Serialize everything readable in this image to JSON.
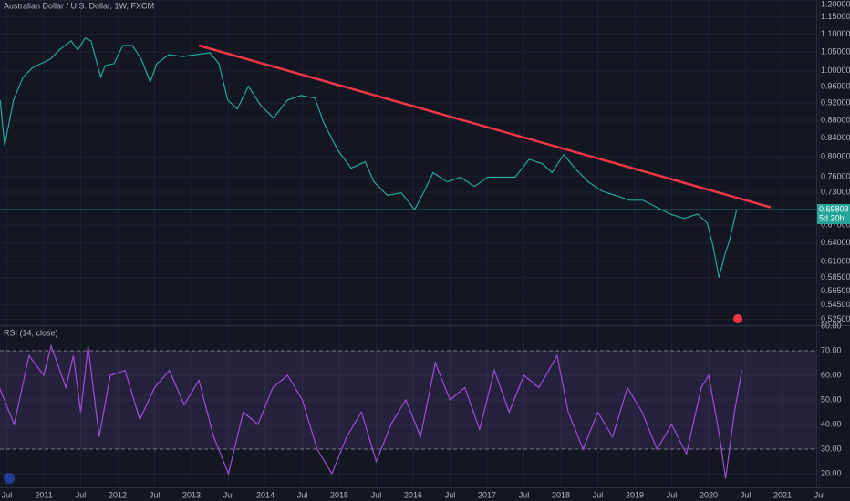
{
  "chart_data": [
    {
      "type": "line",
      "title": "Australian Dollar / U.S. Dollar, 1W, FXCM",
      "log_scale": true,
      "grid": true,
      "color": "#26a69a",
      "x": [
        2010.41,
        2010.47,
        2010.59,
        2010.72,
        2010.84,
        2010.96,
        2011.09,
        2011.21,
        2011.37,
        2011.46,
        2011.56,
        2011.64,
        2011.77,
        2011.83,
        2011.95,
        2012.07,
        2012.2,
        2012.32,
        2012.44,
        2012.53,
        2012.69,
        2012.88,
        2013.06,
        2013.25,
        2013.37,
        2013.49,
        2013.62,
        2013.77,
        2013.93,
        2014.11,
        2014.3,
        2014.48,
        2014.67,
        2014.79,
        2014.98,
        2015.16,
        2015.35,
        2015.47,
        2015.65,
        2015.84,
        2016.02,
        2016.15,
        2016.27,
        2016.46,
        2016.64,
        2016.83,
        2017.01,
        2017.2,
        2017.38,
        2017.57,
        2017.75,
        2017.88,
        2018.04,
        2018.19,
        2018.37,
        2018.56,
        2018.74,
        2018.93,
        2019.11,
        2019.3,
        2019.48,
        2019.67,
        2019.85,
        2019.98,
        2020.06,
        2020.14,
        2020.22,
        2020.28,
        2020.38
      ],
      "values": [
        0.927,
        0.824,
        0.927,
        0.984,
        1.007,
        1.019,
        1.031,
        1.056,
        1.081,
        1.056,
        1.089,
        1.081,
        0.984,
        1.014,
        1.019,
        1.068,
        1.068,
        1.031,
        0.972,
        1.019,
        1.043,
        1.038,
        1.043,
        1.048,
        1.019,
        0.927,
        0.906,
        0.961,
        0.916,
        0.885,
        0.927,
        0.938,
        0.932,
        0.874,
        0.814,
        0.777,
        0.79,
        0.75,
        0.724,
        0.729,
        0.698,
        0.732,
        0.768,
        0.75,
        0.759,
        0.741,
        0.759,
        0.759,
        0.759,
        0.795,
        0.786,
        0.768,
        0.805,
        0.777,
        0.75,
        0.732,
        0.724,
        0.715,
        0.715,
        0.702,
        0.69,
        0.682,
        0.69,
        0.674,
        0.635,
        0.585,
        0.621,
        0.643,
        0.69803
      ],
      "trendline": {
        "x": [
          2013.1,
          2020.84
        ],
        "values": [
          1.068,
          0.702
        ],
        "color": "#f23645"
      },
      "last_price": 0.69803,
      "countdown": "5d 20h",
      "ylim": [
        0.517,
        1.202
      ],
      "yticks": [
        {
          "value": 1.2,
          "label": "1.20000"
        },
        {
          "value": 1.15,
          "label": "1.15000"
        },
        {
          "value": 1.1,
          "label": "1.10000"
        },
        {
          "value": 1.05,
          "label": "1.05000"
        },
        {
          "value": 1.0,
          "label": "1.00000"
        },
        {
          "value": 0.96,
          "label": "0.96000"
        },
        {
          "value": 0.92,
          "label": "0.92000"
        },
        {
          "value": 0.88,
          "label": "0.88000"
        },
        {
          "value": 0.84,
          "label": "0.84000"
        },
        {
          "value": 0.8,
          "label": "0.80000"
        },
        {
          "value": 0.76,
          "label": "0.76000"
        },
        {
          "value": 0.73,
          "label": "0.73000"
        },
        {
          "value": 0.67,
          "label": "0.67000"
        },
        {
          "value": 0.64,
          "label": "0.64000"
        },
        {
          "value": 0.61,
          "label": "0.61000"
        },
        {
          "value": 0.585,
          "label": "0.58500"
        },
        {
          "value": 0.565,
          "label": "0.56500"
        },
        {
          "value": 0.545,
          "label": "0.54500"
        },
        {
          "value": 0.525,
          "label": "0.52500"
        }
      ]
    },
    {
      "type": "line",
      "title": "RSI (14, close)",
      "grid": true,
      "color": "#9c4fd6",
      "bands": [
        70,
        30
      ],
      "x": [
        2010.4,
        2010.6,
        2010.8,
        2011.0,
        2011.1,
        2011.3,
        2011.4,
        2011.5,
        2011.6,
        2011.75,
        2011.9,
        2012.1,
        2012.3,
        2012.5,
        2012.7,
        2012.9,
        2013.1,
        2013.3,
        2013.5,
        2013.7,
        2013.9,
        2014.1,
        2014.3,
        2014.5,
        2014.7,
        2014.9,
        2015.1,
        2015.3,
        2015.5,
        2015.7,
        2015.9,
        2016.1,
        2016.3,
        2016.5,
        2016.7,
        2016.9,
        2017.1,
        2017.3,
        2017.5,
        2017.7,
        2017.95,
        2018.1,
        2018.3,
        2018.5,
        2018.7,
        2018.9,
        2019.1,
        2019.3,
        2019.5,
        2019.7,
        2019.9,
        2020.0,
        2020.15,
        2020.23,
        2020.35,
        2020.45
      ],
      "values": [
        55,
        40,
        68,
        60,
        72,
        55,
        68,
        45,
        72,
        35,
        60,
        62,
        42,
        55,
        62,
        48,
        58,
        35,
        20,
        45,
        40,
        55,
        60,
        50,
        30,
        20,
        35,
        45,
        25,
        40,
        50,
        35,
        65,
        50,
        55,
        38,
        62,
        45,
        60,
        55,
        68,
        45,
        30,
        45,
        35,
        55,
        45,
        30,
        40,
        28,
        55,
        60,
        35,
        18,
        45,
        62
      ],
      "ylim": [
        14.44,
        80
      ],
      "yticks": [
        {
          "value": 80,
          "label": "80.00"
        },
        {
          "value": 70,
          "label": "70.00"
        },
        {
          "value": 60,
          "label": "60.00"
        },
        {
          "value": 50,
          "label": "50.00"
        },
        {
          "value": 40,
          "label": "40.00"
        },
        {
          "value": 30,
          "label": "30.00"
        },
        {
          "value": 20,
          "label": "20.00"
        }
      ],
      "xlim": [
        2010.407,
        2021.457
      ],
      "xticks": [
        {
          "value": 2010.5,
          "label": "Jul"
        },
        2011,
        {
          "value": 2011.5,
          "label": "Jul"
        },
        2012,
        {
          "value": 2012.5,
          "label": "Jul"
        },
        2013,
        {
          "value": 2013.5,
          "label": "Jul"
        },
        2014,
        {
          "value": 2014.5,
          "label": "Jul"
        },
        2015,
        {
          "value": 2015.5,
          "label": "Jul"
        },
        2016,
        {
          "value": 2016.5,
          "label": "Jul"
        },
        2017,
        {
          "value": 2017.5,
          "label": "Jul"
        },
        2018,
        {
          "value": 2018.5,
          "label": "Jul"
        },
        2019,
        {
          "value": 2019.5,
          "label": "Jul"
        },
        2020,
        {
          "value": 2020.5,
          "label": "Jul"
        },
        2021,
        {
          "value": 2021.5,
          "label": "Jul"
        }
      ]
    }
  ]
}
